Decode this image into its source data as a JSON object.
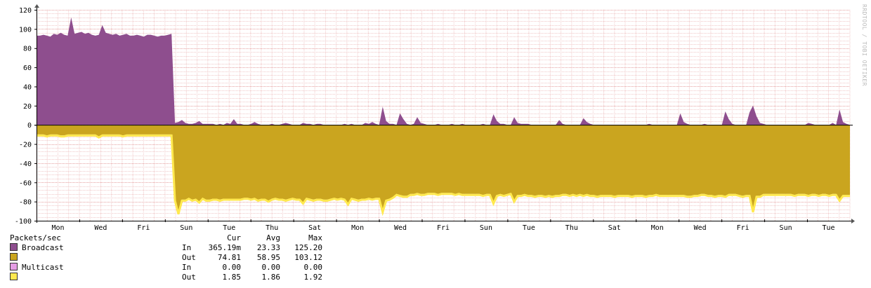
{
  "watermark": "RRDTOOL / TOBI OETIKER",
  "chart_data": {
    "type": "area",
    "title": "",
    "ylabel": "",
    "ylim": [
      -100,
      120
    ],
    "y_ticks": [
      -100,
      -80,
      -60,
      -40,
      -20,
      0,
      20,
      40,
      60,
      80,
      100,
      120
    ],
    "x_ticks": [
      "Mon",
      "Wed",
      "Fri",
      "Sun",
      "Tue",
      "Thu",
      "Sat",
      "Mon",
      "Wed",
      "Fri",
      "Sun",
      "Tue",
      "Thu",
      "Sat",
      "Mon",
      "Wed",
      "Fri",
      "Sun",
      "Tue"
    ],
    "grid": true,
    "legend_position": "bottom-left",
    "series": [
      {
        "name": "Broadcast In",
        "color": "#8e4e8e",
        "values": [
          93,
          93,
          94,
          93,
          92,
          95,
          94,
          96,
          94,
          93,
          112,
          95,
          96,
          97,
          95,
          96,
          94,
          93,
          94,
          104,
          96,
          95,
          94,
          95,
          93,
          94,
          95,
          93,
          93,
          94,
          93,
          92,
          94,
          94,
          93,
          92,
          93,
          93,
          94,
          95,
          2,
          3,
          5,
          2,
          1,
          1,
          2,
          4,
          1,
          1,
          1,
          1,
          0,
          1,
          0,
          2,
          1,
          6,
          1,
          1,
          0,
          0,
          1,
          3,
          1,
          0,
          0,
          0,
          1,
          0,
          0,
          1,
          2,
          1,
          0,
          0,
          0,
          2,
          1,
          1,
          0,
          1,
          1,
          0,
          0,
          0,
          0,
          0,
          0,
          1,
          0,
          1,
          0,
          0,
          0,
          2,
          1,
          3,
          1,
          0,
          19,
          4,
          1,
          1,
          0,
          12,
          6,
          1,
          0,
          1,
          8,
          2,
          1,
          0,
          0,
          0,
          1,
          0,
          0,
          0,
          1,
          0,
          0,
          1,
          0,
          0,
          0,
          0,
          0,
          1,
          0,
          0,
          11,
          4,
          1,
          1,
          0,
          0,
          8,
          2,
          1,
          1,
          1,
          0,
          0,
          0,
          0,
          0,
          0,
          0,
          0,
          5,
          1,
          0,
          0,
          0,
          0,
          0,
          7,
          3,
          1,
          0,
          0,
          0,
          0,
          0,
          0,
          0,
          0,
          0,
          0,
          0,
          0,
          0,
          0,
          0,
          0,
          1,
          0,
          0,
          0,
          0,
          0,
          0,
          0,
          0,
          12,
          3,
          1,
          0,
          0,
          0,
          0,
          1,
          0,
          0,
          0,
          0,
          0,
          14,
          6,
          1,
          0,
          0,
          0,
          0,
          13,
          20,
          9,
          2,
          1,
          0,
          0,
          0,
          0,
          0,
          0,
          0,
          0,
          0,
          0,
          0,
          0,
          2,
          1,
          0,
          0,
          0,
          0,
          0,
          2,
          0,
          16,
          3,
          1,
          0
        ]
      },
      {
        "name": "Broadcast Out",
        "color": "#caa51f",
        "values": [
          10,
          10,
          10,
          11,
          10,
          10,
          10,
          11,
          11,
          10,
          10,
          10,
          10,
          10,
          10,
          10,
          10,
          10,
          12,
          10,
          10,
          10,
          10,
          10,
          10,
          11,
          10,
          10,
          10,
          10,
          10,
          10,
          10,
          10,
          10,
          10,
          10,
          10,
          10,
          10,
          78,
          92,
          78,
          78,
          76,
          78,
          77,
          80,
          76,
          78,
          78,
          77,
          77,
          78,
          77,
          77,
          77,
          77,
          77,
          77,
          76,
          76,
          77,
          76,
          78,
          77,
          77,
          79,
          77,
          76,
          77,
          77,
          78,
          77,
          76,
          77,
          77,
          81,
          76,
          77,
          78,
          77,
          77,
          78,
          78,
          77,
          76,
          77,
          76,
          77,
          82,
          76,
          77,
          78,
          77,
          77,
          76,
          77,
          76,
          76,
          90,
          78,
          77,
          75,
          72,
          73,
          74,
          74,
          72,
          72,
          71,
          72,
          72,
          71,
          71,
          71,
          72,
          71,
          71,
          71,
          71,
          72,
          71,
          72,
          72,
          72,
          72,
          72,
          72,
          73,
          72,
          72,
          81,
          73,
          72,
          73,
          72,
          71,
          79,
          73,
          73,
          72,
          73,
          73,
          74,
          73,
          73,
          74,
          73,
          74,
          73,
          73,
          72,
          72,
          73,
          72,
          73,
          72,
          73,
          72,
          73,
          73,
          74,
          73,
          73,
          73,
          73,
          74,
          73,
          73,
          73,
          73,
          74,
          73,
          73,
          73,
          74,
          73,
          73,
          72,
          73,
          73,
          73,
          73,
          73,
          73,
          73,
          73,
          74,
          74,
          73,
          73,
          72,
          72,
          73,
          73,
          74,
          73,
          73,
          74,
          72,
          72,
          72,
          73,
          74,
          73,
          73,
          90,
          74,
          74,
          72,
          72,
          72,
          72,
          72,
          72,
          72,
          72,
          72,
          73,
          72,
          72,
          72,
          73,
          72,
          72,
          73,
          72,
          72,
          73,
          72,
          72,
          78,
          73,
          73,
          73
        ]
      },
      {
        "name": "Multicast In",
        "color": "#e59ee5",
        "values": [
          0
        ]
      },
      {
        "name": "Multicast Out",
        "color": "#ffe94f",
        "values": [
          1.85
        ]
      }
    ]
  },
  "legend": {
    "title": "Packets/sec",
    "columns": [
      "Cur",
      "Avg",
      "Max"
    ],
    "rows": [
      {
        "series": "Broadcast",
        "dir": "In",
        "cur": "365.19m",
        "avg": "23.33",
        "max": "125.20",
        "color": "#8e4e8e"
      },
      {
        "series": "",
        "dir": "Out",
        "cur": "74.81",
        "avg": "58.95",
        "max": "103.12",
        "color": "#caa51f"
      },
      {
        "series": "Multicast",
        "dir": "In",
        "cur": "0.00",
        "avg": "0.00",
        "max": "0.00",
        "color": "#e59ee5"
      },
      {
        "series": "",
        "dir": "Out",
        "cur": "1.85",
        "avg": "1.86",
        "max": "1.92",
        "color": "#ffe94f"
      }
    ]
  }
}
